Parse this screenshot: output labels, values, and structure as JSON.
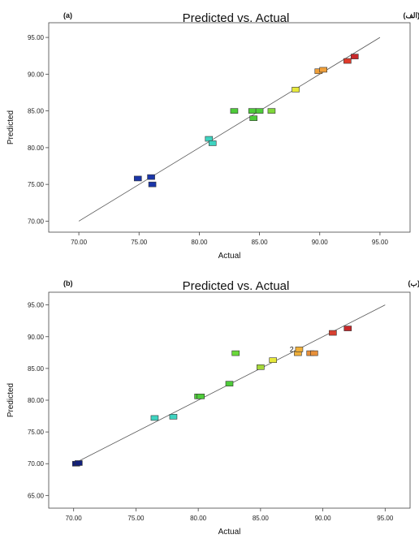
{
  "chart_data": [
    {
      "type": "scatter",
      "panel_tag": "(a)",
      "title": "Predicted vs. Actual",
      "corner_label": "(الف)",
      "xlabel": "Actual",
      "ylabel": "Predicted",
      "xlim": [
        67.5,
        97.5
      ],
      "ylim": [
        68.5,
        97.0
      ],
      "xticks": [
        "70.00",
        "75.00",
        "80.00",
        "85.00",
        "90.00",
        "95.00"
      ],
      "xtick_values": [
        70,
        75,
        80,
        85,
        90,
        95
      ],
      "yticks": [
        "70.00",
        "75.00",
        "80.00",
        "85.00",
        "90.00",
        "95.00"
      ],
      "ytick_values": [
        70,
        75,
        80,
        85,
        90,
        95
      ],
      "diagonal": [
        70,
        95
      ],
      "points": [
        {
          "x": 74.9,
          "y": 75.8,
          "color": "#1a35a8"
        },
        {
          "x": 76.0,
          "y": 76.0,
          "color": "#1a35a8"
        },
        {
          "x": 76.1,
          "y": 75.0,
          "color": "#1a35a8"
        },
        {
          "x": 80.8,
          "y": 81.2,
          "color": "#3ed3c0"
        },
        {
          "x": 81.1,
          "y": 80.6,
          "color": "#3ed3c0"
        },
        {
          "x": 82.9,
          "y": 85.0,
          "color": "#4ecb3a"
        },
        {
          "x": 84.4,
          "y": 85.0,
          "color": "#4ecb3a"
        },
        {
          "x": 84.5,
          "y": 84.0,
          "color": "#4ecb3a"
        },
        {
          "x": 85.0,
          "y": 85.0,
          "color": "#4ecb3a"
        },
        {
          "x": 86.0,
          "y": 85.0,
          "color": "#7fd83a"
        },
        {
          "x": 88.0,
          "y": 87.9,
          "color": "#e6e83a"
        },
        {
          "x": 89.9,
          "y": 90.4,
          "color": "#f0a03a"
        },
        {
          "x": 90.3,
          "y": 90.6,
          "color": "#f0a03a"
        },
        {
          "x": 92.3,
          "y": 91.8,
          "color": "#e03a2a"
        },
        {
          "x": 92.9,
          "y": 92.4,
          "color": "#c8282a"
        }
      ],
      "annotations": []
    },
    {
      "type": "scatter",
      "panel_tag": "(b)",
      "title": "Predicted vs. Actual",
      "corner_label": "(ب)",
      "xlabel": "Actual",
      "ylabel": "Predicted",
      "xlim": [
        68.0,
        97.0
      ],
      "ylim": [
        63.0,
        97.0
      ],
      "xticks": [
        "70.00",
        "75.00",
        "80.00",
        "85.00",
        "90.00",
        "95.00"
      ],
      "xtick_values": [
        70,
        75,
        80,
        85,
        90,
        95
      ],
      "yticks": [
        "65.00",
        "70.00",
        "75.00",
        "80.00",
        "85.00",
        "90.00",
        "95.00"
      ],
      "ytick_values": [
        65,
        70,
        75,
        80,
        85,
        90,
        95
      ],
      "diagonal": [
        70,
        95
      ],
      "points": [
        {
          "x": 70.2,
          "y": 70.0,
          "color": "#12207a"
        },
        {
          "x": 70.4,
          "y": 70.1,
          "color": "#12207a"
        },
        {
          "x": 76.5,
          "y": 77.2,
          "color": "#3ed3c0"
        },
        {
          "x": 78.0,
          "y": 77.4,
          "color": "#3ed3c0"
        },
        {
          "x": 80.0,
          "y": 80.6,
          "color": "#4ecb3a"
        },
        {
          "x": 80.2,
          "y": 80.6,
          "color": "#4ecb3a"
        },
        {
          "x": 82.5,
          "y": 82.6,
          "color": "#4ecb3a"
        },
        {
          "x": 83.0,
          "y": 87.4,
          "color": "#6ad83a"
        },
        {
          "x": 85.0,
          "y": 85.2,
          "color": "#a5d83a"
        },
        {
          "x": 86.0,
          "y": 86.3,
          "color": "#e6e83a"
        },
        {
          "x": 88.0,
          "y": 87.4,
          "color": "#f0b03a"
        },
        {
          "x": 88.1,
          "y": 88.0,
          "color": "#f0b03a"
        },
        {
          "x": 89.0,
          "y": 87.4,
          "color": "#e8903a"
        },
        {
          "x": 89.3,
          "y": 87.4,
          "color": "#e8903a"
        },
        {
          "x": 90.8,
          "y": 90.6,
          "color": "#d84030"
        },
        {
          "x": 92.0,
          "y": 91.3,
          "color": "#c8282a"
        }
      ],
      "annotations": [
        {
          "text": "2",
          "x": 87.5,
          "y": 88.0
        }
      ]
    }
  ]
}
